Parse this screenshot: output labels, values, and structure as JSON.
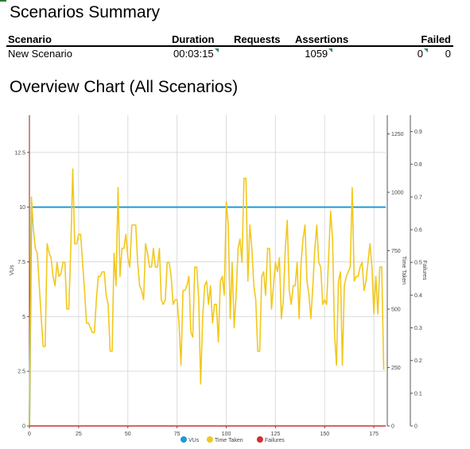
{
  "summary": {
    "title": "Scenarios Summary",
    "headers": {
      "scenario": "Scenario",
      "duration": "Duration",
      "requests": "Requests",
      "assertions": "Assertions",
      "failed": "Failed"
    },
    "row": {
      "scenario": "New Scenario",
      "duration": "00:03:15",
      "requests": "1059",
      "assertions": "0",
      "failed": "0"
    }
  },
  "chart_title": "Overview Chart (All Scenarios)",
  "chart_data": {
    "type": "line",
    "xlabel": "",
    "x_ticks": [
      "0",
      "25",
      "50",
      "75",
      "100",
      "125",
      "150",
      "175"
    ],
    "xlim": [
      0,
      181
    ],
    "left_axis": {
      "label": "VUs",
      "ticks": [
        "0",
        "2.5",
        "5",
        "7.5",
        "10",
        "12.5"
      ],
      "ylim": [
        0,
        14.2
      ]
    },
    "right_axis_time": {
      "label": "Time Taken",
      "ticks": [
        "0",
        "250",
        "500",
        "750",
        "1000",
        "1250"
      ],
      "ylim": [
        0,
        1330
      ]
    },
    "right_axis_failures": {
      "label": "Failures",
      "ticks": [
        "0",
        "0.1",
        "0.2",
        "0.3",
        "0.4",
        "0.5",
        "0.6",
        "0.7",
        "0.8",
        "0.9"
      ],
      "ylim": [
        0,
        0.95
      ]
    },
    "legend_position": "bottom",
    "grid": true,
    "series": [
      {
        "name": "VUs",
        "axis": "left",
        "color": "#1f9ad6",
        "x": [
          0,
          1,
          181
        ],
        "values": [
          0,
          10,
          10
        ]
      },
      {
        "name": "Time Taken",
        "axis": "time",
        "color": "#f2c81c",
        "x": [
          0,
          1,
          2,
          3,
          4,
          5,
          6,
          7,
          8,
          9,
          10,
          11,
          12,
          13,
          14,
          15,
          16,
          17,
          18,
          19,
          20,
          21,
          22,
          23,
          24,
          25,
          26,
          27,
          28,
          29,
          30,
          31,
          32,
          33,
          34,
          35,
          36,
          37,
          38,
          39,
          40,
          41,
          42,
          43,
          44,
          45,
          46,
          47,
          48,
          49,
          50,
          51,
          52,
          53,
          54,
          55,
          56,
          57,
          58,
          59,
          60,
          61,
          62,
          63,
          64,
          65,
          66,
          67,
          68,
          69,
          70,
          71,
          72,
          73,
          74,
          75,
          76,
          77,
          78,
          79,
          80,
          81,
          82,
          83,
          84,
          85,
          86,
          87,
          88,
          89,
          90,
          91,
          92,
          93,
          94,
          95,
          96,
          97,
          98,
          99,
          100,
          101,
          102,
          103,
          104,
          105,
          106,
          107,
          108,
          109,
          110,
          111,
          112,
          113,
          114,
          115,
          116,
          117,
          118,
          119,
          120,
          121,
          122,
          123,
          124,
          125,
          126,
          127,
          128,
          129,
          130,
          131,
          132,
          133,
          134,
          135,
          136,
          137,
          138,
          139,
          140,
          141,
          142,
          143,
          144,
          145,
          146,
          147,
          148,
          149,
          150,
          151,
          152,
          153,
          154,
          155,
          156,
          157,
          158,
          159,
          160,
          161,
          162,
          163,
          164,
          165,
          166,
          167,
          168,
          169,
          170,
          171,
          172,
          173,
          174,
          175,
          176,
          177,
          178,
          179,
          180
        ],
        "values": [
          0,
          980,
          840,
          760,
          740,
          600,
          460,
          340,
          340,
          780,
          740,
          720,
          640,
          600,
          700,
          640,
          650,
          700,
          700,
          500,
          500,
          760,
          1100,
          780,
          780,
          820,
          820,
          700,
          580,
          440,
          440,
          420,
          400,
          400,
          540,
          640,
          640,
          660,
          660,
          560,
          520,
          320,
          320,
          740,
          600,
          1020,
          640,
          760,
          760,
          820,
          720,
          680,
          860,
          860,
          860,
          700,
          600,
          580,
          540,
          780,
          740,
          680,
          680,
          760,
          680,
          680,
          760,
          540,
          520,
          540,
          700,
          700,
          640,
          520,
          540,
          540,
          440,
          260,
          580,
          580,
          600,
          640,
          400,
          380,
          680,
          680,
          540,
          180,
          460,
          600,
          620,
          520,
          600,
          440,
          520,
          520,
          360,
          620,
          640,
          560,
          960,
          860,
          460,
          700,
          420,
          560,
          760,
          800,
          700,
          1060,
          1060,
          620,
          860,
          760,
          600,
          540,
          320,
          320,
          640,
          660,
          560,
          760,
          760,
          500,
          600,
          700,
          660,
          720,
          460,
          540,
          760,
          880,
          580,
          520,
          600,
          600,
          700,
          460,
          700,
          800,
          860,
          620,
          560,
          460,
          600,
          760,
          860,
          700,
          680,
          520,
          540,
          520,
          720,
          920,
          800,
          400,
          260,
          620,
          660,
          260,
          600,
          640,
          660,
          680,
          1020,
          620,
          640,
          640,
          680,
          700,
          580,
          620,
          700,
          780,
          680,
          480,
          640,
          480,
          680,
          680,
          240
        ]
      },
      {
        "name": "Failures",
        "axis": "failures",
        "color": "#d32f2f",
        "x": [
          0,
          181
        ],
        "values": [
          0,
          0
        ]
      }
    ]
  }
}
